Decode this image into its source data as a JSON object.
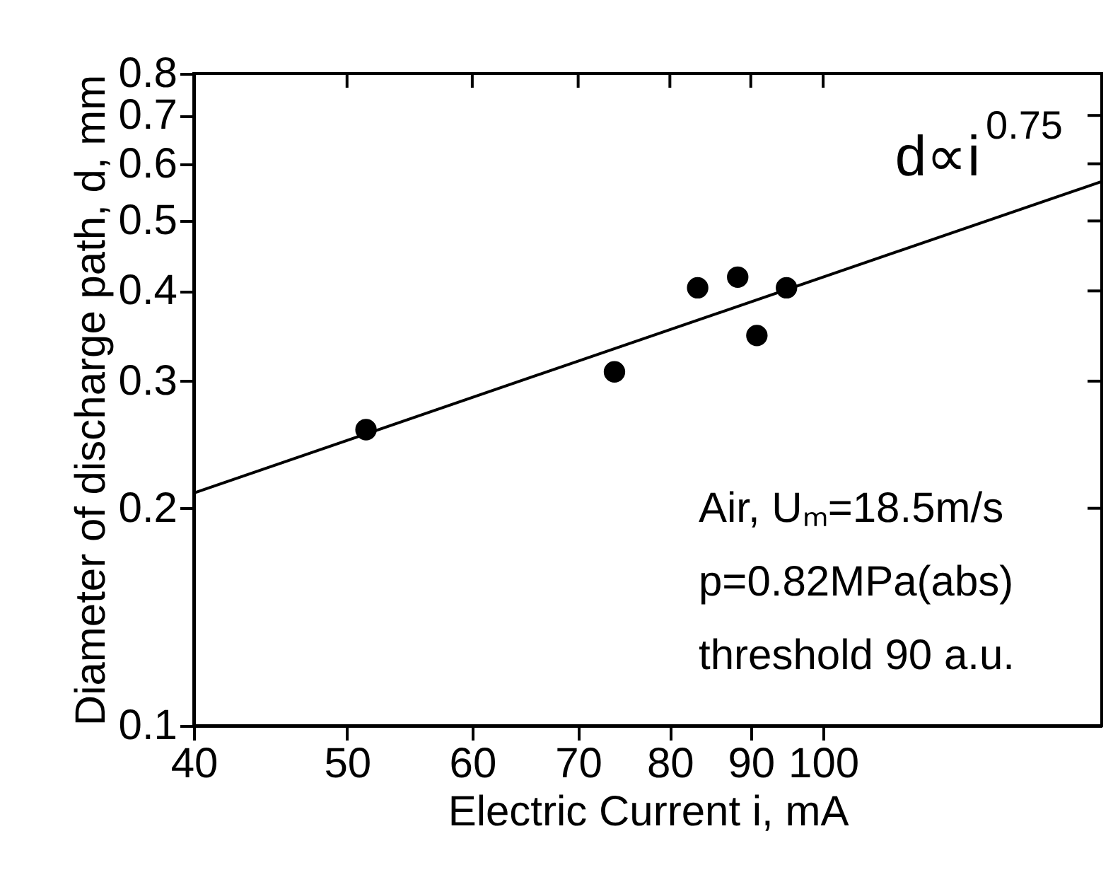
{
  "chart_data": {
    "type": "scatter",
    "xlabel": "Electric Current  i, mA",
    "ylabel": "Diameter of discharge path,  d, mm",
    "log": "xy",
    "xlim": [
      40,
      150
    ],
    "ylim": [
      0.1,
      0.8
    ],
    "xticks": [
      40,
      50,
      60,
      70,
      80,
      90,
      100
    ],
    "yticks": [
      0.1,
      0.2,
      0.3,
      0.4,
      0.5,
      0.6,
      0.7,
      0.8
    ],
    "grid": false,
    "series": [
      {
        "marker": "circle",
        "color": "#000000",
        "x": [
          51.4,
          73.8,
          83.3,
          88.3,
          90.8,
          94.8
        ],
        "values": [
          0.257,
          0.309,
          0.404,
          0.418,
          0.347,
          0.404
        ]
      },
      {
        "type": "line",
        "color": "#000000",
        "line_style": "solid",
        "x": [
          40,
          150
        ],
        "values": [
          0.21,
          0.567
        ]
      }
    ],
    "annotations": [
      "d∝i$^{0.75}$",
      "Air, Uₘ=18.5m/s",
      "p=0.82MPa(abs)",
      "threshold 90 a.u."
    ]
  }
}
